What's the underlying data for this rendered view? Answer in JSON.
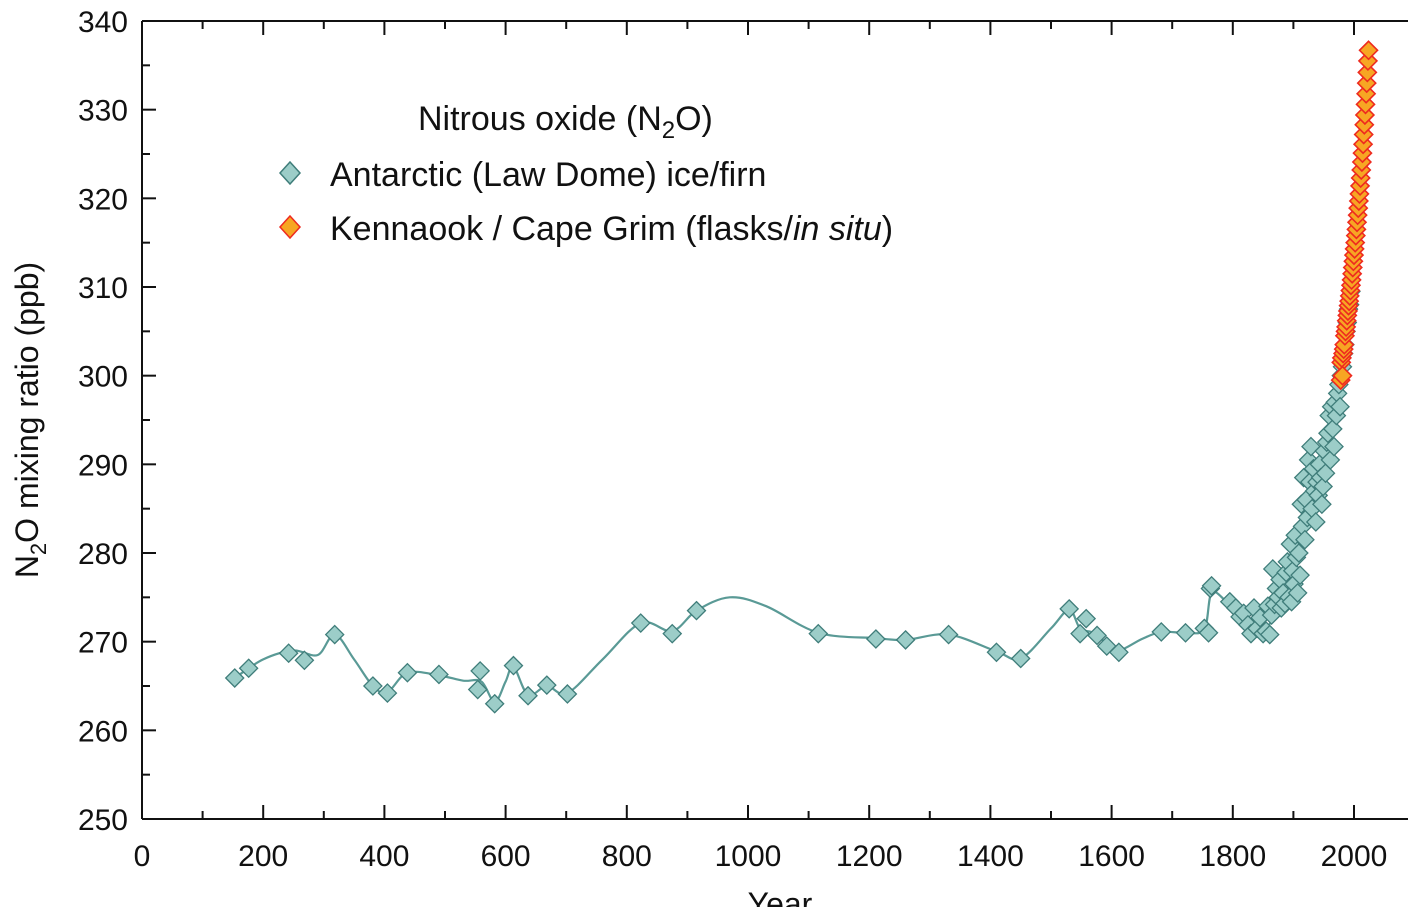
{
  "chart_data": {
    "type": "scatter",
    "xlabel": "Year",
    "ylabel_main": "N",
    "ylabel_sub": "2",
    "ylabel_rest": "O mixing ratio (ppb)",
    "xlim": [
      0,
      2100
    ],
    "ylim": [
      250,
      340
    ],
    "xticks": [
      "0",
      "200",
      "400",
      "600",
      "800",
      "1000",
      "1200",
      "1400",
      "1600",
      "1800",
      "2000"
    ],
    "yticks": [
      "250",
      "260",
      "270",
      "280",
      "290",
      "300",
      "310",
      "320",
      "330",
      "340"
    ],
    "legend": {
      "title_main": "Nitrous oxide (N",
      "title_sub": "2",
      "title_end": "O)",
      "placement": "top-left",
      "entry1": "Antarctic (Law Dome) ice/firn",
      "entry2_main": "Kennaook / Cape Grim (flasks/",
      "entry2_italic": "in situ",
      "entry2_end": ")"
    },
    "colors": {
      "ice_fill": "#9ccdc8",
      "ice_stroke": "#3f7d7a",
      "spline": "#5a9a96",
      "flask_fill": "#f7a623",
      "flask_stroke": "#ee2a1f"
    },
    "series": [
      {
        "name": "Antarctic (Law Dome) ice/firn",
        "points": [
          [
            153,
            265.9
          ],
          [
            176,
            267.0
          ],
          [
            242,
            268.7
          ],
          [
            268,
            267.9
          ],
          [
            318,
            270.8
          ],
          [
            381,
            265.0
          ],
          [
            405,
            264.2
          ],
          [
            438,
            266.5
          ],
          [
            490,
            266.3
          ],
          [
            554,
            264.6
          ],
          [
            558,
            266.7
          ],
          [
            582,
            263.0
          ],
          [
            613,
            267.3
          ],
          [
            637,
            263.9
          ],
          [
            668,
            265.1
          ],
          [
            702,
            264.1
          ],
          [
            823,
            272.1
          ],
          [
            875,
            270.9
          ],
          [
            915,
            273.5
          ],
          [
            1116,
            270.9
          ],
          [
            1211,
            270.3
          ],
          [
            1260,
            270.2
          ],
          [
            1331,
            270.8
          ],
          [
            1410,
            268.8
          ],
          [
            1450,
            268.1
          ],
          [
            1530,
            273.7
          ],
          [
            1548,
            270.9
          ],
          [
            1558,
            272.6
          ],
          [
            1576,
            270.7
          ],
          [
            1592,
            269.5
          ],
          [
            1612,
            268.8
          ],
          [
            1682,
            271.1
          ],
          [
            1722,
            271.0
          ],
          [
            1753,
            271.5
          ],
          [
            1760,
            271.0
          ],
          [
            1763,
            276.0
          ],
          [
            1765,
            276.3
          ],
          [
            1795,
            274.5
          ],
          [
            1805,
            273.8
          ],
          [
            1812,
            272.8
          ],
          [
            1818,
            273.2
          ],
          [
            1825,
            271.9
          ],
          [
            1830,
            270.9
          ],
          [
            1835,
            273.8
          ],
          [
            1840,
            271.5
          ],
          [
            1845,
            272.7
          ],
          [
            1850,
            270.9
          ],
          [
            1855,
            271.2
          ],
          [
            1858,
            274.0
          ],
          [
            1861,
            270.8
          ],
          [
            1864,
            273.0
          ],
          [
            1866,
            278.2
          ],
          [
            1869,
            274.2
          ],
          [
            1872,
            276.0
          ],
          [
            1875,
            275.0
          ],
          [
            1878,
            277.0
          ],
          [
            1880,
            273.8
          ],
          [
            1883,
            275.5
          ],
          [
            1886,
            274.3
          ],
          [
            1888,
            277.8
          ],
          [
            1890,
            279.0
          ],
          [
            1893,
            275.0
          ],
          [
            1895,
            281.0
          ],
          [
            1897,
            274.5
          ],
          [
            1899,
            278.0
          ],
          [
            1901,
            276.5
          ],
          [
            1903,
            282.0
          ],
          [
            1905,
            279.5
          ],
          [
            1907,
            275.5
          ],
          [
            1909,
            280.0
          ],
          [
            1911,
            277.5
          ],
          [
            1913,
            285.5
          ],
          [
            1915,
            283.0
          ],
          [
            1917,
            288.5
          ],
          [
            1919,
            281.5
          ],
          [
            1921,
            286.0
          ],
          [
            1923,
            284.0
          ],
          [
            1925,
            290.5
          ],
          [
            1927,
            288.0
          ],
          [
            1929,
            292.0
          ],
          [
            1931,
            285.0
          ],
          [
            1933,
            289.5
          ],
          [
            1935,
            287.0
          ],
          [
            1937,
            283.5
          ],
          [
            1939,
            288.0
          ],
          [
            1941,
            286.5
          ],
          [
            1943,
            290.0
          ],
          [
            1945,
            288.5
          ],
          [
            1947,
            285.5
          ],
          [
            1949,
            287.5
          ],
          [
            1951,
            291.5
          ],
          [
            1953,
            289.0
          ],
          [
            1955,
            292.5
          ],
          [
            1957,
            293.5
          ],
          [
            1959,
            295.5
          ],
          [
            1961,
            290.5
          ],
          [
            1963,
            296.5
          ],
          [
            1965,
            294.0
          ],
          [
            1967,
            292.0
          ],
          [
            1969,
            297.0
          ],
          [
            1971,
            295.5
          ],
          [
            1973,
            298.0
          ],
          [
            1975,
            299.0
          ],
          [
            1977,
            296.5
          ],
          [
            1979,
            300.0
          ],
          [
            1981,
            301.0
          ],
          [
            1983,
            302.5
          ],
          [
            1985,
            303.5
          ],
          [
            1987,
            305.0
          ],
          [
            1989,
            306.0
          ],
          [
            1991,
            307.5
          ],
          [
            1993,
            308.0
          ],
          [
            1995,
            309.5
          ]
        ]
      },
      {
        "name": "Kennaook / Cape Grim (flasks/in situ)",
        "points": [
          [
            1978,
            299.5
          ],
          [
            1979,
            301.5
          ],
          [
            1980,
            302.0
          ],
          [
            1981,
            300.0
          ],
          [
            1982,
            302.5
          ],
          [
            1983,
            303.0
          ],
          [
            1984,
            303.5
          ],
          [
            1985,
            304.5
          ],
          [
            1986,
            305.0
          ],
          [
            1987,
            305.5
          ],
          [
            1988,
            306.2
          ],
          [
            1989,
            306.8
          ],
          [
            1990,
            307.3
          ],
          [
            1991,
            307.9
          ],
          [
            1992,
            308.4
          ],
          [
            1993,
            309.0
          ],
          [
            1994,
            309.6
          ],
          [
            1995,
            310.2
          ],
          [
            1996,
            310.8
          ],
          [
            1997,
            311.5
          ],
          [
            1998,
            312.2
          ],
          [
            1999,
            312.9
          ],
          [
            2000,
            313.6
          ],
          [
            2001,
            314.3
          ],
          [
            2002,
            315.0
          ],
          [
            2003,
            315.8
          ],
          [
            2004,
            316.5
          ],
          [
            2005,
            317.3
          ],
          [
            2006,
            318.1
          ],
          [
            2007,
            318.9
          ],
          [
            2008,
            319.7
          ],
          [
            2009,
            320.5
          ],
          [
            2010,
            321.4
          ],
          [
            2011,
            322.3
          ],
          [
            2012,
            323.2
          ],
          [
            2013,
            324.1
          ],
          [
            2014,
            325.1
          ],
          [
            2015,
            326.1
          ],
          [
            2016,
            327.2
          ],
          [
            2017,
            328.3
          ],
          [
            2018,
            329.4
          ],
          [
            2019,
            330.6
          ],
          [
            2020,
            331.8
          ],
          [
            2021,
            333.0
          ],
          [
            2022,
            334.2
          ],
          [
            2023,
            335.5
          ],
          [
            2024,
            336.7
          ]
        ]
      }
    ],
    "fit_line": {
      "points": [
        [
          153,
          265.9
        ],
        [
          200,
          268.0
        ],
        [
          250,
          269.0
        ],
        [
          290,
          268.5
        ],
        [
          318,
          270.8
        ],
        [
          350,
          268.0
        ],
        [
          381,
          265.0
        ],
        [
          405,
          264.3
        ],
        [
          438,
          266.5
        ],
        [
          490,
          266.2
        ],
        [
          530,
          265.6
        ],
        [
          560,
          265.5
        ],
        [
          582,
          263.2
        ],
        [
          600,
          265.5
        ],
        [
          613,
          267.2
        ],
        [
          637,
          264.0
        ],
        [
          668,
          265.0
        ],
        [
          702,
          264.2
        ],
        [
          760,
          268.0
        ],
        [
          823,
          272.1
        ],
        [
          875,
          271.2
        ],
        [
          915,
          273.5
        ],
        [
          970,
          275.0
        ],
        [
          1030,
          274.0
        ],
        [
          1116,
          271.0
        ],
        [
          1211,
          270.4
        ],
        [
          1260,
          270.2
        ],
        [
          1331,
          270.8
        ],
        [
          1410,
          268.9
        ],
        [
          1450,
          268.1
        ],
        [
          1500,
          271.5
        ],
        [
          1530,
          273.6
        ],
        [
          1548,
          271.5
        ],
        [
          1570,
          271.0
        ],
        [
          1592,
          269.8
        ],
        [
          1612,
          269.0
        ],
        [
          1650,
          270.3
        ],
        [
          1682,
          271.1
        ],
        [
          1722,
          271.0
        ],
        [
          1753,
          271.4
        ],
        [
          1765,
          275.5
        ],
        [
          1790,
          274.5
        ],
        [
          1820,
          272.8
        ],
        [
          1850,
          271.5
        ],
        [
          1870,
          273.0
        ],
        [
          1890,
          276.0
        ],
        [
          1910,
          280.0
        ],
        [
          1930,
          285.0
        ],
        [
          1950,
          290.0
        ],
        [
          1965,
          295.0
        ],
        [
          1980,
          300.5
        ],
        [
          1995,
          308.0
        ]
      ]
    }
  }
}
